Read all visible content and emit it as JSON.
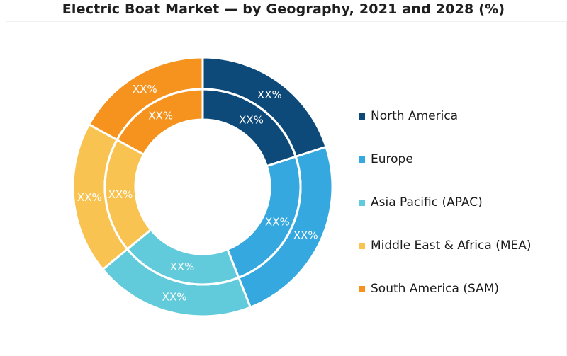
{
  "title": "Electric Boat Market — by Geography, 2021 and 2028 (%)",
  "chart_data": {
    "type": "pie",
    "variant": "nested-donut",
    "title": "Electric Boat Market — by Geography, 2021 and 2028 (%)",
    "categories": [
      "North America",
      "Europe",
      "Asia Pacific (APAC)",
      "Middle East & Africa (MEA)",
      "South America (SAM)"
    ],
    "colors": [
      "#0d4a7a",
      "#35a8e0",
      "#62cbdb",
      "#f8c350",
      "#f5931e"
    ],
    "rings": [
      {
        "ring": "outer",
        "values": [
          20,
          24,
          20,
          19,
          17
        ],
        "labels": [
          "XX%",
          "XX%",
          "XX%",
          "XX%",
          "XX%"
        ]
      },
      {
        "ring": "inner",
        "values": [
          20,
          24,
          20,
          19,
          17
        ],
        "labels": [
          "XX%",
          "XX%",
          "XX%",
          "XX%",
          "XX%"
        ]
      }
    ],
    "legend_position": "right"
  }
}
